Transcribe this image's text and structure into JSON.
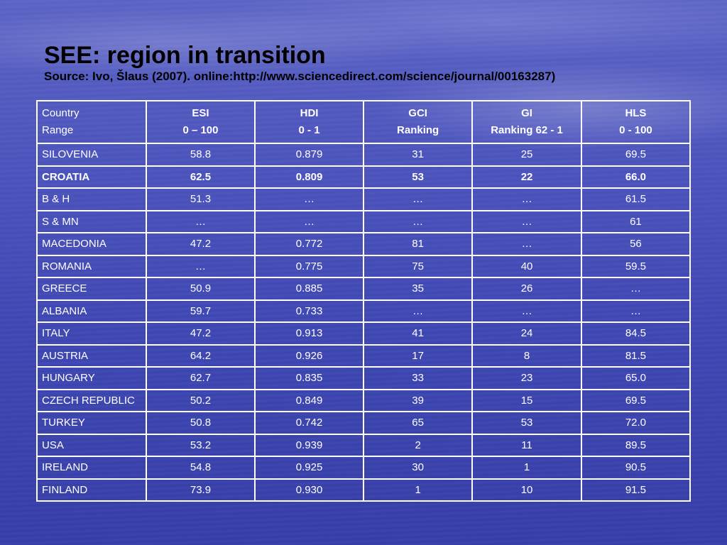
{
  "slide": {
    "title": "SEE: region in transition",
    "subtitle": "Source: Ivo, Šlaus (2007). online:http://www.sciencedirect.com/science/journal/00163287)"
  },
  "table": {
    "headers": [
      {
        "line1": "Country",
        "line2": "Range"
      },
      {
        "line1": "ESI",
        "line2": "0 – 100"
      },
      {
        "line1": "HDI",
        "line2": "0 - 1"
      },
      {
        "line1": "GCI",
        "line2": "Ranking"
      },
      {
        "line1": "GI",
        "line2": "Ranking 62 - 1"
      },
      {
        "line1": "HLS",
        "line2": "0 - 100"
      }
    ],
    "rows": [
      {
        "country": "SILOVENIA",
        "esi": "58.8",
        "hdi": "0.879",
        "gci": "31",
        "gi": "25",
        "hls": "69.5",
        "bold": false
      },
      {
        "country": "CROATIA",
        "esi": "62.5",
        "hdi": "0.809",
        "gci": "53",
        "gi": "22",
        "hls": "66.0",
        "bold": true
      },
      {
        "country": "B & H",
        "esi": "51.3",
        "hdi": "…",
        "gci": "…",
        "gi": "…",
        "hls": "61.5",
        "bold": false
      },
      {
        "country": "S & MN",
        "esi": "…",
        "hdi": "…",
        "gci": "…",
        "gi": "…",
        "hls": "61",
        "bold": false
      },
      {
        "country": "MACEDONIA",
        "esi": "47.2",
        "hdi": "0.772",
        "gci": "81",
        "gi": "…",
        "hls": "56",
        "bold": false
      },
      {
        "country": "ROMANIA",
        "esi": "…",
        "hdi": "0.775",
        "gci": "75",
        "gi": "40",
        "hls": "59.5",
        "bold": false
      },
      {
        "country": "GREECE",
        "esi": "50.9",
        "hdi": "0.885",
        "gci": "35",
        "gi": "26",
        "hls": "…",
        "bold": false
      },
      {
        "country": "ALBANIA",
        "esi": "59.7",
        "hdi": "0.733",
        "gci": "…",
        "gi": "…",
        "hls": "…",
        "bold": false
      },
      {
        "country": "ITALY",
        "esi": "47.2",
        "hdi": "0.913",
        "gci": "41",
        "gi": "24",
        "hls": "84.5",
        "bold": false
      },
      {
        "country": "AUSTRIA",
        "esi": "64.2",
        "hdi": "0.926",
        "gci": "17",
        "gi": "8",
        "hls": "81.5",
        "bold": false
      },
      {
        "country": "HUNGARY",
        "esi": "62.7",
        "hdi": "0.835",
        "gci": "33",
        "gi": "23",
        "hls": "65.0",
        "bold": false
      },
      {
        "country": "CZECH REPUBLIC",
        "esi": "50.2",
        "hdi": "0.849",
        "gci": "39",
        "gi": "15",
        "hls": "69.5",
        "bold": false
      },
      {
        "country": "TURKEY",
        "esi": "50.8",
        "hdi": "0.742",
        "gci": "65",
        "gi": "53",
        "hls": "72.0",
        "bold": false
      },
      {
        "country": "USA",
        "esi": "53.2",
        "hdi": "0.939",
        "gci": "2",
        "gi": "11",
        "hls": "89.5",
        "bold": false
      },
      {
        "country": "IRELAND",
        "esi": "54.8",
        "hdi": "0.925",
        "gci": "30",
        "gi": "1",
        "hls": "90.5",
        "bold": false
      },
      {
        "country": "FINLAND",
        "esi": "73.9",
        "hdi": "0.930",
        "gci": "1",
        "gi": "10",
        "hls": "91.5",
        "bold": false
      }
    ]
  }
}
